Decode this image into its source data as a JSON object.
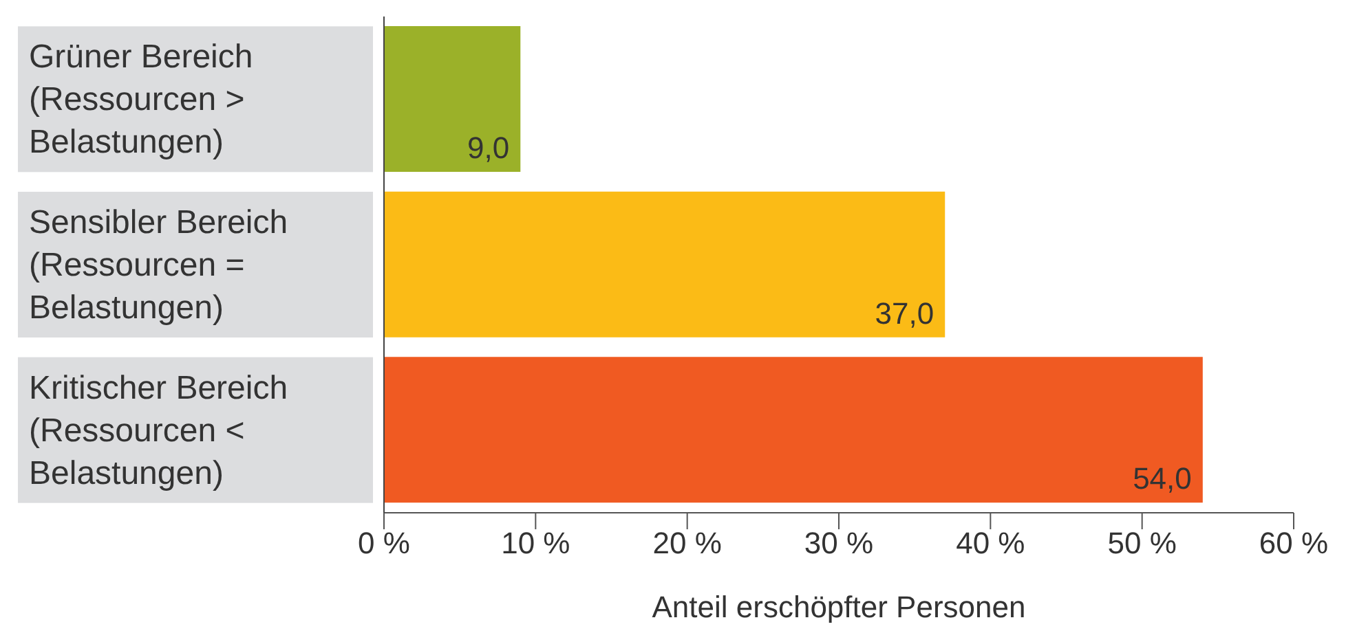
{
  "chart_data": {
    "type": "bar",
    "orientation": "horizontal",
    "categories": [
      "Grüner Bereich (Ressourcen > Belastungen)",
      "Sensibler Bereich (Ressourcen = Belastungen)",
      "Kritischer Bereich (Ressourcen < Belastungen)"
    ],
    "values": [
      9.0,
      37.0,
      54.0
    ],
    "colors": [
      "#9bb129",
      "#fbbb16",
      "#f05a22"
    ],
    "value_labels": [
      "9,0",
      "37,0",
      "54,0"
    ],
    "xlabel": "Anteil erschöpfter Personen",
    "xlim": [
      0,
      60
    ],
    "xticks": [
      {
        "value": 0,
        "label": "0 %"
      },
      {
        "value": 10,
        "label": "10 %"
      },
      {
        "value": 20,
        "label": "20 %"
      },
      {
        "value": 30,
        "label": "30 %"
      },
      {
        "value": 40,
        "label": "40 %"
      },
      {
        "value": 50,
        "label": "50 %"
      },
      {
        "value": 60,
        "label": "60 %"
      }
    ],
    "grid": false,
    "legend": false
  }
}
